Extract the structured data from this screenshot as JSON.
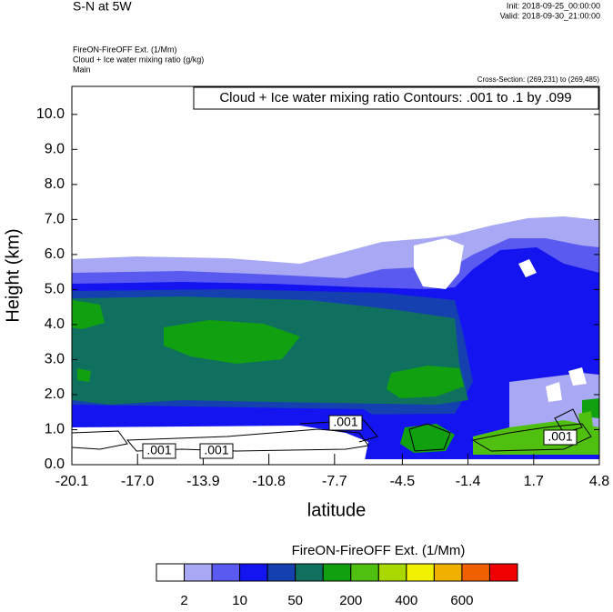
{
  "header": {
    "title": "S-N at 5W",
    "init": "Init: 2018-09-25_00:00:00",
    "valid": "Valid: 2018-09-30_21:00:00",
    "subtitles": [
      "FireON-FireOFF Ext.   (1/Mm)",
      "Cloud + Ice water mixing ratio   (g/kg)",
      "Main"
    ],
    "cross_section": "Cross-Section: (269,231) to (269,485)"
  },
  "chart_data": {
    "type": "contour",
    "annotation": "Cloud + Ice water mixing ratio Contours: .001 to .1 by .099",
    "xlabel": "latitude",
    "ylabel": "Height (km)",
    "xlim": [
      -20.1,
      4.8
    ],
    "xticks": [
      -20.1,
      {
        "value": -17.0,
        "label": "-17.0"
      },
      -13.9,
      -10.8,
      -7.7,
      -4.5,
      -1.4,
      1.7,
      4.8
    ],
    "ylim": [
      0,
      10.8
    ],
    "yticks": [
      {
        "value": 0,
        "label": "0.0"
      },
      {
        "value": 1,
        "label": "1.0"
      },
      {
        "value": 2,
        "label": "2.0"
      },
      {
        "value": 3,
        "label": "3.0"
      },
      {
        "value": 4,
        "label": "4.0"
      },
      {
        "value": 5,
        "label": "5.0"
      },
      {
        "value": 6,
        "label": "6.0"
      },
      {
        "value": 7,
        "label": "7.0"
      },
      {
        "value": 8,
        "label": "8.0"
      },
      {
        "value": 9,
        "label": "9.0"
      },
      {
        "value": 10,
        "label": "10.0"
      }
    ],
    "contour_labels": [
      ".001",
      ".001",
      ".001",
      ".001"
    ],
    "colorbar": {
      "title": "FireON-FireOFF Ext.  (1/Mm)",
      "colors": [
        "#ffffff",
        "#a8a8f4",
        "#5a5af0",
        "#1414f0",
        "#1440b0",
        "#107060",
        "#10a010",
        "#50c010",
        "#a8d800",
        "#f0f000",
        "#f0b000",
        "#f06000",
        "#f00000"
      ],
      "labels": [
        2,
        10,
        50,
        200,
        400,
        600
      ]
    }
  }
}
